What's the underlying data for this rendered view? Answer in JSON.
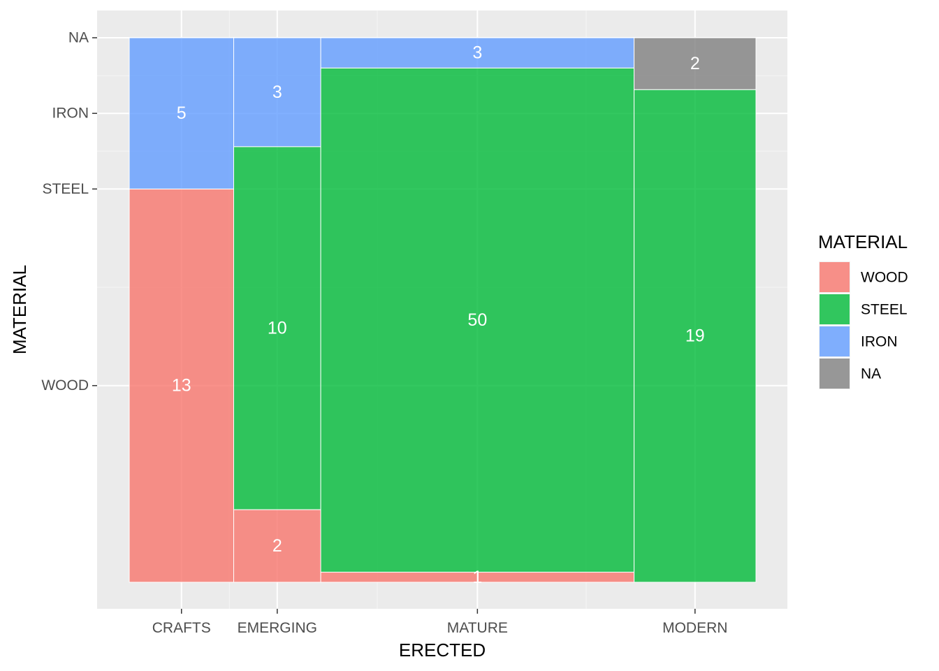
{
  "chart_data": {
    "type": "mosaic",
    "xlabel": "ERECTED",
    "ylabel": "MATERIAL",
    "categories": [
      "CRAFTS",
      "EMERGING",
      "MATURE",
      "MODERN"
    ],
    "y_tick_labels": [
      "WOOD",
      "STEEL",
      "IRON",
      "NA"
    ],
    "fill_levels": [
      "WOOD",
      "STEEL",
      "IRON",
      "NA"
    ],
    "colors": {
      "WOOD": "#F8766D",
      "STEEL": "#00BA38",
      "IRON": "#619CFF",
      "NA": "#7F7F7F"
    },
    "counts": [
      {
        "category": "CRAFTS",
        "values": {
          "WOOD": 13,
          "STEEL": 0,
          "IRON": 5,
          "NA": 0
        }
      },
      {
        "category": "EMERGING",
        "values": {
          "WOOD": 2,
          "STEEL": 10,
          "IRON": 3,
          "NA": 0
        }
      },
      {
        "category": "MATURE",
        "values": {
          "WOOD": 1,
          "STEEL": 50,
          "IRON": 3,
          "NA": 0
        }
      },
      {
        "category": "MODERN",
        "values": {
          "WOOD": 0,
          "STEEL": 19,
          "IRON": 0,
          "NA": 2
        }
      }
    ],
    "legend": {
      "title": "MATERIAL",
      "entries": [
        "WOOD",
        "STEEL",
        "IRON",
        "NA"
      ],
      "placement": "right"
    },
    "grid": true
  }
}
